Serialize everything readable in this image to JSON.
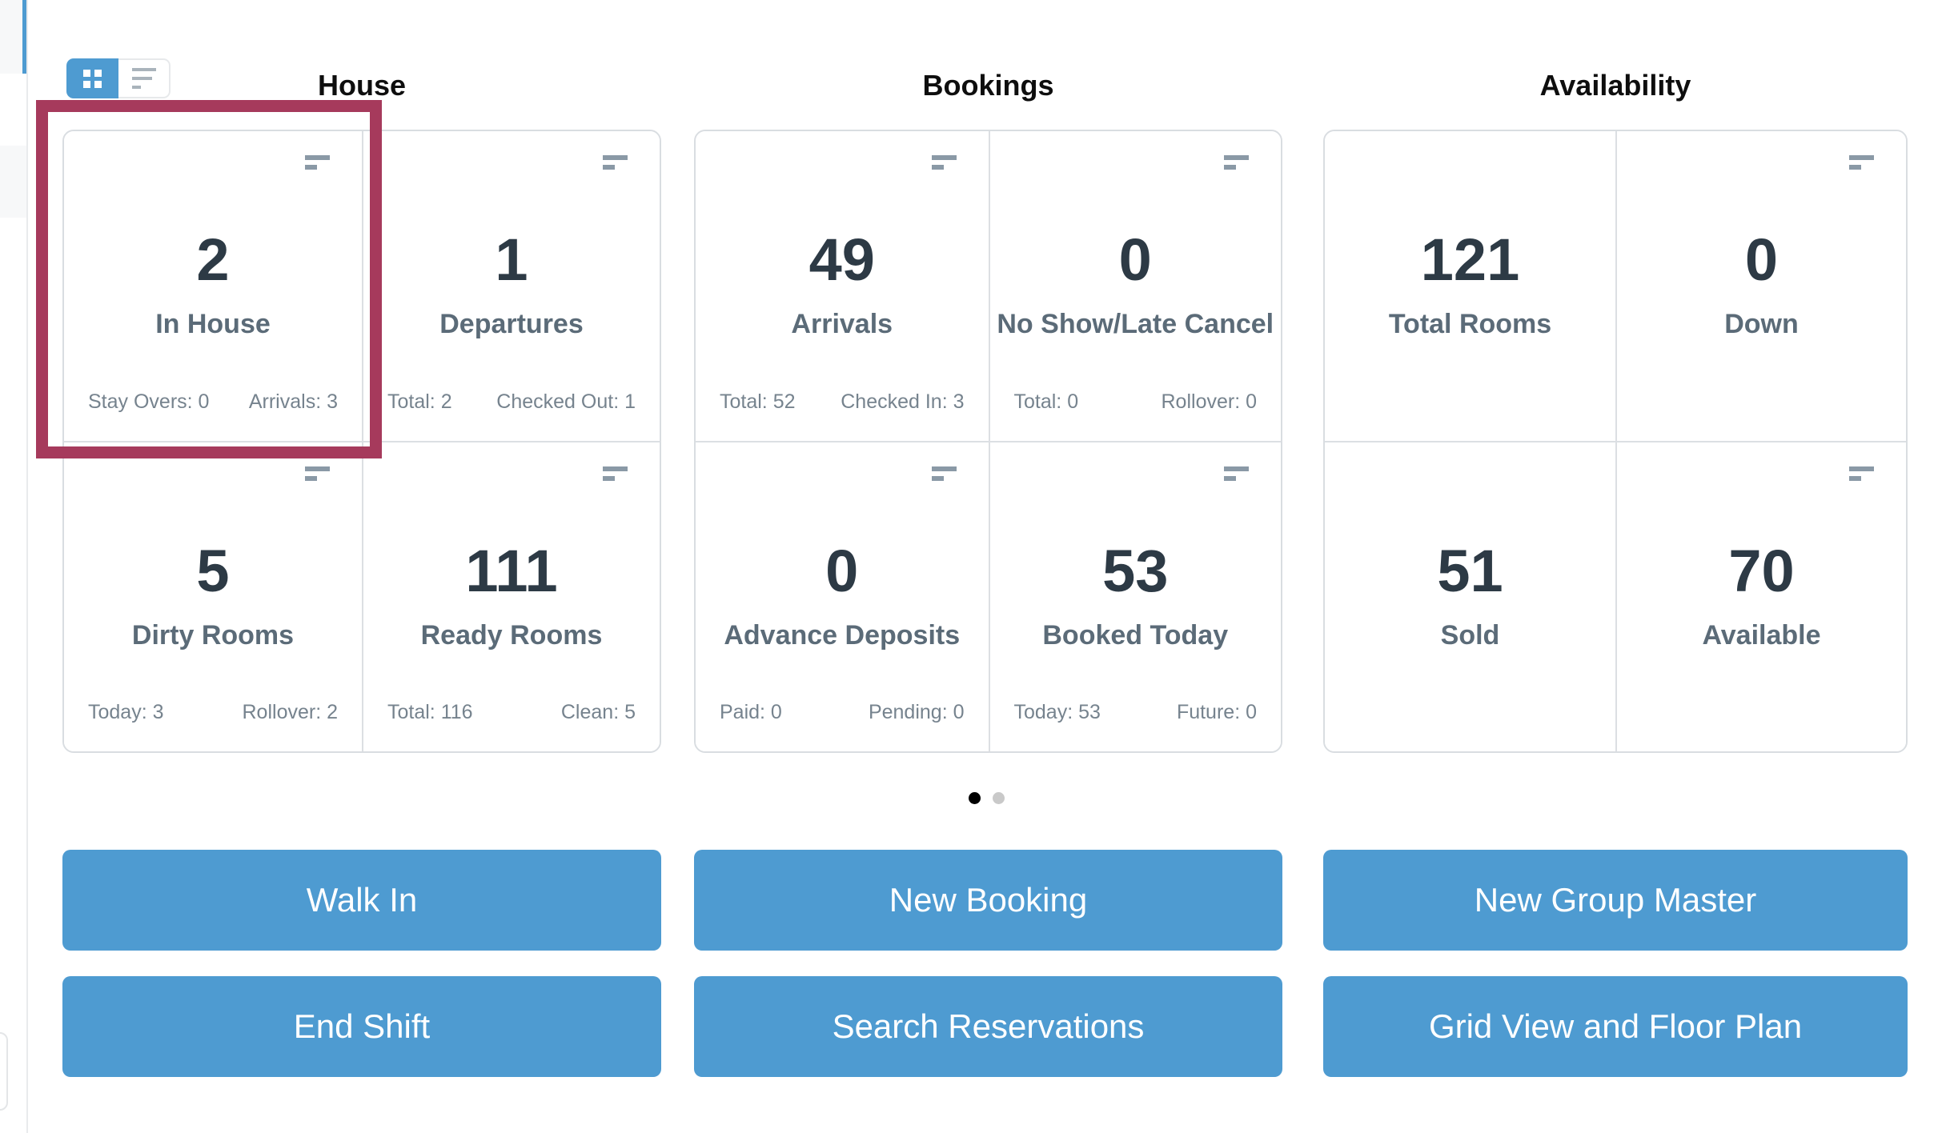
{
  "view_toggle": {
    "options": [
      {
        "id": "grid-view",
        "active": true
      },
      {
        "id": "list-view",
        "active": false
      }
    ]
  },
  "sections": [
    {
      "title": "House",
      "cards": [
        {
          "value": "2",
          "label": "In House",
          "stats": [
            "Stay Overs: 0",
            "Arrivals: 3"
          ],
          "menu_icon": true,
          "highlighted": true
        },
        {
          "value": "1",
          "label": "Departures",
          "stats": [
            "Total: 2",
            "Checked Out: 1"
          ],
          "menu_icon": true
        },
        {
          "value": "5",
          "label": "Dirty Rooms",
          "stats": [
            "Today: 3",
            "Rollover: 2"
          ],
          "menu_icon": true
        },
        {
          "value": "111",
          "label": "Ready Rooms",
          "stats": [
            "Total: 116",
            "Clean: 5"
          ],
          "menu_icon": true
        }
      ],
      "buttons": [
        "Walk In",
        "End Shift"
      ]
    },
    {
      "title": "Bookings",
      "cards": [
        {
          "value": "49",
          "label": "Arrivals",
          "stats": [
            "Total: 52",
            "Checked In: 3"
          ],
          "menu_icon": true
        },
        {
          "value": "0",
          "label": "No Show/Late Cancel",
          "stats": [
            "Total: 0",
            "Rollover: 0"
          ],
          "menu_icon": true
        },
        {
          "value": "0",
          "label": "Advance Deposits",
          "stats": [
            "Paid: 0",
            "Pending: 0"
          ],
          "menu_icon": true
        },
        {
          "value": "53",
          "label": "Booked Today",
          "stats": [
            "Today: 53",
            "Future: 0"
          ],
          "menu_icon": true
        }
      ],
      "buttons": [
        "New Booking",
        "Search Reservations"
      ]
    },
    {
      "title": "Availability",
      "cards": [
        {
          "value": "121",
          "label": "Total Rooms",
          "stats": [],
          "menu_icon": false
        },
        {
          "value": "0",
          "label": "Down",
          "stats": [],
          "menu_icon": true
        },
        {
          "value": "51",
          "label": "Sold",
          "stats": [],
          "menu_icon": false
        },
        {
          "value": "70",
          "label": "Available",
          "stats": [],
          "menu_icon": true
        }
      ],
      "buttons": [
        "New Group Master",
        "Grid View and Floor Plan"
      ]
    }
  ],
  "pagination": {
    "total_pages": 2,
    "active_page": 1
  },
  "colors": {
    "accent_blue": "#4e9bd1",
    "highlight_red": "#a63a5c",
    "value_text": "#2d3a45",
    "label_text": "#5b6b78",
    "stat_text": "#76838e",
    "card_border": "#d9dde1",
    "active_dot": "#000000",
    "inactive_dot": "#c9c9c9"
  }
}
